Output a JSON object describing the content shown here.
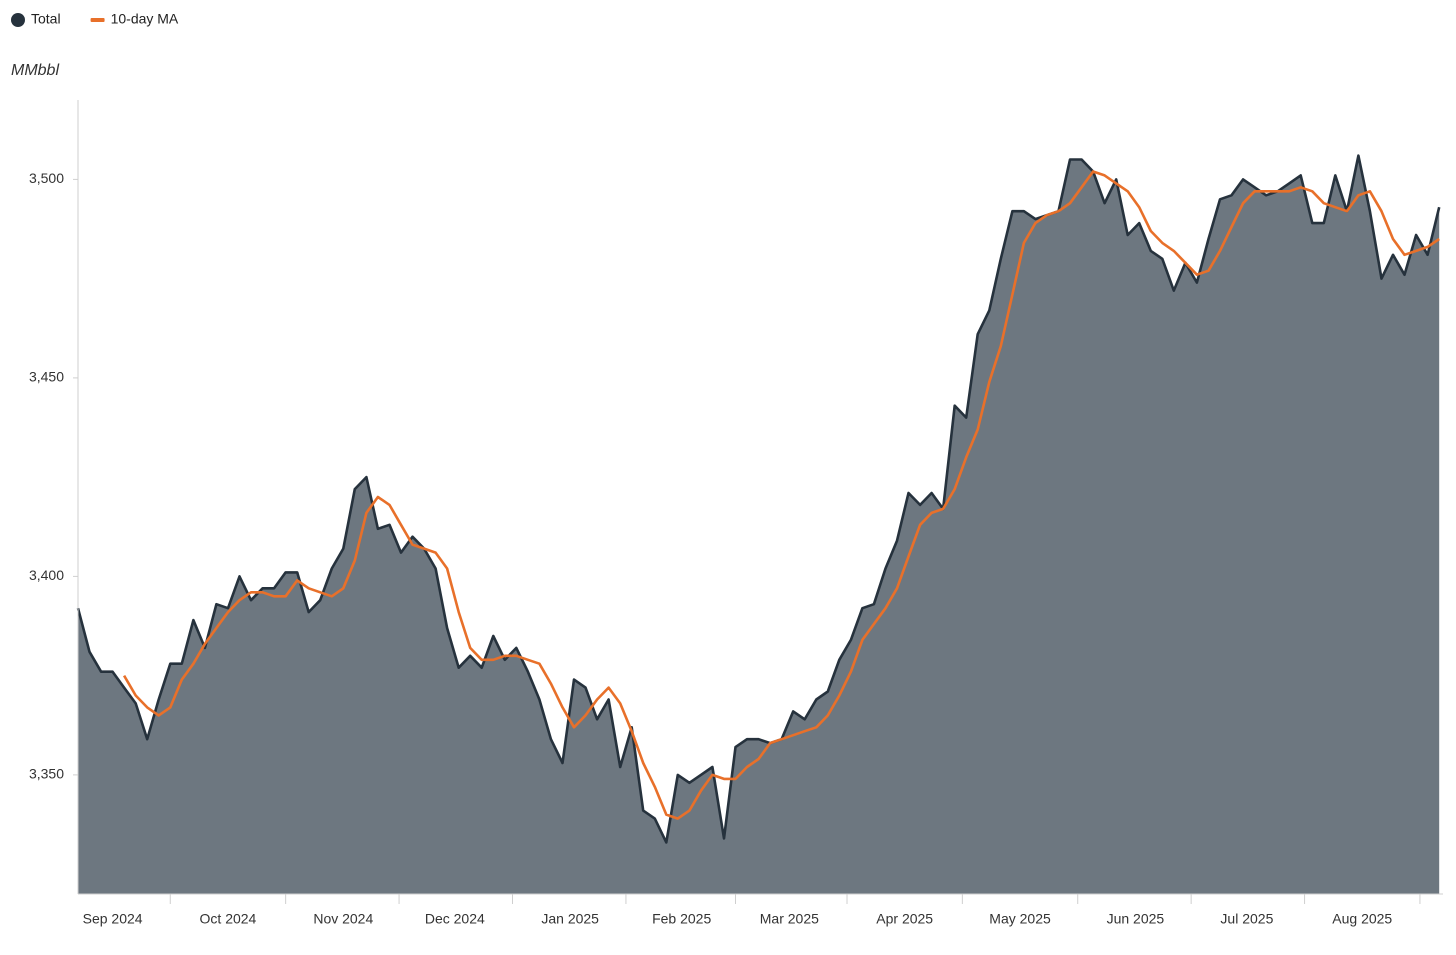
{
  "chart_data": {
    "type": "area",
    "y_label": "MMbbl",
    "x": [
      5,
      8,
      11,
      14,
      17,
      20,
      23,
      26,
      29,
      32,
      35,
      38,
      41,
      44,
      47,
      50,
      53,
      56,
      59,
      62,
      65,
      68,
      71,
      74,
      77,
      80,
      83,
      86,
      89,
      92,
      95,
      98,
      101,
      104,
      107,
      110,
      113,
      116,
      119,
      122,
      125,
      128,
      131,
      134,
      137,
      140,
      143,
      146,
      149,
      152,
      155,
      158,
      161,
      164,
      167,
      170,
      173,
      176,
      179,
      182,
      185,
      188,
      191,
      194,
      197,
      200,
      203,
      206,
      209,
      212,
      215,
      218,
      221,
      224,
      227,
      230,
      233,
      236,
      239,
      242,
      245,
      248,
      251,
      254,
      257,
      260,
      263,
      266,
      269,
      272,
      275,
      278,
      281,
      284,
      287,
      290,
      293,
      296,
      299,
      302,
      305,
      308,
      311,
      314,
      317,
      320,
      323,
      326,
      329,
      332,
      335,
      338,
      341,
      344,
      347,
      350,
      353,
      356,
      359
    ],
    "series": [
      {
        "name": "Total",
        "color": "#6d7780",
        "line_color": "#26323d",
        "values": [
          3392,
          3381,
          3376,
          3376,
          3372,
          3368,
          3359,
          3369,
          3378,
          3378,
          3389,
          3382,
          3393,
          3392,
          3400,
          3394,
          3397,
          3397,
          3401,
          3401,
          3391,
          3394,
          3402,
          3407,
          3422,
          3425,
          3412,
          3413,
          3406,
          3410,
          3407,
          3402,
          3387,
          3377,
          3380,
          3377,
          3385,
          3379,
          3382,
          3376,
          3369,
          3359,
          3353,
          3374,
          3372,
          3364,
          3369,
          3352,
          3362,
          3341,
          3339,
          3333,
          3350,
          3348,
          3350,
          3352,
          3334,
          3357,
          3359,
          3359,
          3358,
          3359,
          3366,
          3364,
          3369,
          3371,
          3379,
          3384,
          3392,
          3393,
          3402,
          3409,
          3421,
          3418,
          3421,
          3417,
          3443,
          3440,
          3461,
          3467,
          3480,
          3492,
          3492,
          3490,
          3491,
          3492,
          3505,
          3505,
          3502,
          3494,
          3500,
          3486,
          3489,
          3482,
          3480,
          3472,
          3479,
          3474,
          3485,
          3495,
          3496,
          3500,
          3498,
          3496,
          3497,
          3499,
          3501,
          3489,
          3489,
          3501,
          3492,
          3506,
          3492,
          3475,
          3481,
          3476,
          3486,
          3481,
          3493
        ]
      },
      {
        "name": "10-day MA",
        "color": "#e8702a",
        "type": "line",
        "values": [
          null,
          null,
          null,
          null,
          3375,
          3370,
          3367,
          3365,
          3367,
          3374,
          3378,
          3383,
          3387,
          3391,
          3394,
          3396,
          3396,
          3395,
          3395,
          3399,
          3397,
          3396,
          3395,
          3397,
          3404,
          3416,
          3420,
          3418,
          3413,
          3408,
          3407,
          3406,
          3402,
          3391,
          3382,
          3379,
          3379,
          3380,
          3380,
          3379,
          3378,
          3373,
          3367,
          3362,
          3365,
          3369,
          3372,
          3368,
          3361,
          3353,
          3347,
          3340,
          3339,
          3341,
          3346,
          3350,
          3349,
          3349,
          3352,
          3354,
          3358,
          3359,
          3360,
          3361,
          3362,
          3365,
          3370,
          3376,
          3384,
          3388,
          3392,
          3397,
          3405,
          3413,
          3416,
          3417,
          3422,
          3430,
          3437,
          3449,
          3458,
          3471,
          3484,
          3489,
          3491,
          3492,
          3494,
          3498,
          3502,
          3501,
          3499,
          3497,
          3493,
          3487,
          3484,
          3482,
          3479,
          3476,
          3477,
          3482,
          3488,
          3494,
          3497,
          3497,
          3497,
          3497,
          3498,
          3497,
          3494,
          3493,
          3492,
          3496,
          3497,
          3492,
          3485,
          3481,
          3482,
          3483,
          3485
        ]
      }
    ],
    "xlim": [
      5,
      360
    ],
    "xticks": [
      {
        "value": 14,
        "label": "Sep 2024"
      },
      {
        "value": 44,
        "label": "Oct 2024"
      },
      {
        "value": 74,
        "label": "Nov 2024"
      },
      {
        "value": 103,
        "label": "Dec 2024"
      },
      {
        "value": 133,
        "label": "Jan 2025"
      },
      {
        "value": 162,
        "label": "Feb 2025"
      },
      {
        "value": 190,
        "label": "Mar 2025"
      },
      {
        "value": 220,
        "label": "Apr 2025"
      },
      {
        "value": 250,
        "label": "May 2025"
      },
      {
        "value": 280,
        "label": "Jun 2025"
      },
      {
        "value": 309,
        "label": "Jul 2025"
      },
      {
        "value": 339,
        "label": "Aug 2025"
      }
    ],
    "ylim": [
      3320,
      3520
    ],
    "yticks": [
      {
        "value": 3350,
        "label": "3,350"
      },
      {
        "value": 3400,
        "label": "3,400"
      },
      {
        "value": 3450,
        "label": "3,450"
      },
      {
        "value": 3500,
        "label": "3,500"
      }
    ],
    "grid": false,
    "legend": "top-left"
  }
}
